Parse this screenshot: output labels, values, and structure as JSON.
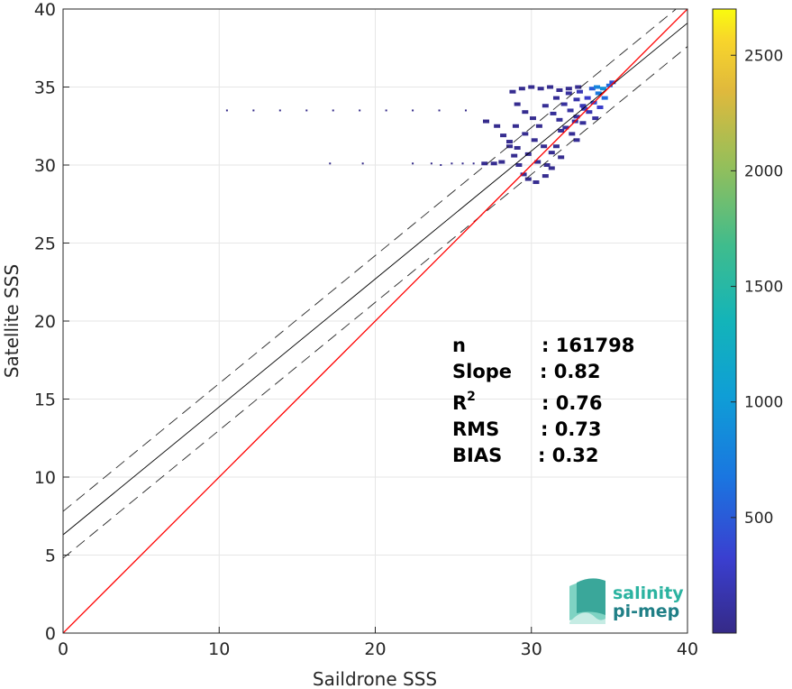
{
  "chart_data": {
    "type": "heatmap",
    "title": "",
    "xlabel": "Saildrone SSS",
    "ylabel": "Satellite SSS",
    "xlim": [
      0,
      40
    ],
    "ylim": [
      0,
      40
    ],
    "xticks": [
      "0",
      "10",
      "20",
      "30",
      "40"
    ],
    "yticks": [
      "0",
      "5",
      "10",
      "15",
      "20",
      "25",
      "30",
      "35",
      "40"
    ],
    "grid": true,
    "lines": {
      "identity": {
        "slope": 1,
        "intercept": 0,
        "color": "#ff0000"
      },
      "fit": {
        "slope": 0.82,
        "intercept": 6.3,
        "color": "#000000"
      },
      "fit_upper": {
        "slope": 0.82,
        "intercept": 7.8,
        "style": "dashed"
      },
      "fit_lower": {
        "slope": 0.82,
        "intercept": 4.8,
        "style": "dashed"
      }
    },
    "density_points": [
      [
        10.5,
        33.5,
        10
      ],
      [
        12.2,
        33.5,
        10
      ],
      [
        13.9,
        33.5,
        10
      ],
      [
        15.6,
        33.5,
        10
      ],
      [
        17.3,
        33.5,
        10
      ],
      [
        19.0,
        33.5,
        10
      ],
      [
        20.7,
        33.5,
        10
      ],
      [
        22.4,
        33.5,
        10
      ],
      [
        24.1,
        33.5,
        10
      ],
      [
        25.8,
        33.5,
        10
      ],
      [
        17.1,
        30.1,
        10
      ],
      [
        19.2,
        30.1,
        10
      ],
      [
        22.4,
        30.1,
        10
      ],
      [
        23.6,
        30.1,
        10
      ],
      [
        24.2,
        30.0,
        20
      ],
      [
        24.9,
        30.1,
        20
      ],
      [
        25.6,
        30.1,
        30
      ],
      [
        26.3,
        30.1,
        30
      ],
      [
        27.0,
        30.1,
        40
      ],
      [
        27.6,
        30.1,
        40
      ],
      [
        28.1,
        30.2,
        40
      ],
      [
        27.1,
        32.8,
        20
      ],
      [
        27.8,
        32.5,
        30
      ],
      [
        28.2,
        31.9,
        40
      ],
      [
        28.6,
        31.2,
        40
      ],
      [
        28.9,
        30.6,
        40
      ],
      [
        29.2,
        30.0,
        40
      ],
      [
        29.5,
        29.4,
        40
      ],
      [
        29.8,
        29.1,
        30
      ],
      [
        30.3,
        28.9,
        40
      ],
      [
        30.9,
        29.3,
        40
      ],
      [
        31.3,
        29.8,
        40
      ],
      [
        28.8,
        34.7,
        40
      ],
      [
        29.4,
        34.9,
        40
      ],
      [
        30.0,
        35.0,
        40
      ],
      [
        30.6,
        34.9,
        40
      ],
      [
        31.2,
        35.0,
        40
      ],
      [
        31.8,
        34.8,
        40
      ],
      [
        32.4,
        34.9,
        40
      ],
      [
        33.0,
        35.0,
        40
      ],
      [
        29.1,
        33.9,
        40
      ],
      [
        29.6,
        33.4,
        40
      ],
      [
        30.1,
        33.0,
        40
      ],
      [
        30.5,
        32.5,
        40
      ],
      [
        29.0,
        32.5,
        40
      ],
      [
        29.6,
        32.0,
        40
      ],
      [
        30.2,
        31.6,
        40
      ],
      [
        30.8,
        31.2,
        40
      ],
      [
        31.3,
        30.8,
        40
      ],
      [
        31.9,
        30.5,
        40
      ],
      [
        28.6,
        31.5,
        40
      ],
      [
        29.1,
        31.1,
        40
      ],
      [
        29.8,
        30.7,
        40
      ],
      [
        30.4,
        30.2,
        40
      ],
      [
        31.0,
        30.0,
        40
      ],
      [
        31.6,
        31.2,
        40
      ],
      [
        30.9,
        33.8,
        60
      ],
      [
        31.4,
        33.3,
        80
      ],
      [
        31.8,
        32.9,
        80
      ],
      [
        32.2,
        32.4,
        80
      ],
      [
        32.6,
        32.0,
        60
      ],
      [
        32.9,
        31.6,
        60
      ],
      [
        31.6,
        34.3,
        60
      ],
      [
        32.1,
        33.9,
        100
      ],
      [
        32.5,
        33.5,
        120
      ],
      [
        32.9,
        33.1,
        120
      ],
      [
        33.3,
        32.7,
        80
      ],
      [
        32.4,
        34.6,
        100
      ],
      [
        32.9,
        34.2,
        150
      ],
      [
        33.3,
        33.8,
        200
      ],
      [
        33.7,
        33.4,
        180
      ],
      [
        34.1,
        33.0,
        100
      ],
      [
        33.1,
        34.7,
        200
      ],
      [
        33.6,
        34.3,
        300
      ],
      [
        34.0,
        34.0,
        400
      ],
      [
        34.4,
        33.7,
        300
      ],
      [
        33.9,
        34.9,
        500
      ],
      [
        34.3,
        34.6,
        700
      ],
      [
        34.7,
        34.3,
        600
      ],
      [
        34.6,
        34.9,
        900
      ],
      [
        35.0,
        35.1,
        600
      ],
      [
        35.2,
        35.3,
        400
      ],
      [
        34.2,
        35.0,
        800
      ],
      [
        33.4,
        33.6,
        250
      ],
      [
        32.8,
        32.8,
        120
      ],
      [
        31.9,
        32.2,
        80
      ]
    ]
  },
  "stats": {
    "n_label": "n",
    "n_value": ": 161798",
    "slope_label": "Slope",
    "slope_value": ": 0.82",
    "r2_label": "R",
    "r2_sup": "2",
    "r2_value": ": 0.76",
    "rms_label": "RMS",
    "rms_value": ": 0.73",
    "bias_label": "BIAS",
    "bias_value": ": 0.32"
  },
  "colorbar": {
    "ticks": [
      "500",
      "1000",
      "1500",
      "2000",
      "2500"
    ],
    "tick_values": [
      500,
      1000,
      1500,
      2000,
      2500
    ],
    "min": 0,
    "max": 2700,
    "colormap": "parula"
  },
  "logo": {
    "line1": "salinity",
    "line2": "pi-mep"
  }
}
